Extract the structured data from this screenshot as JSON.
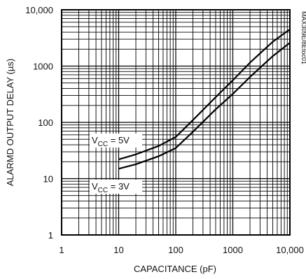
{
  "chart_data": {
    "type": "line",
    "x_scale": "log",
    "y_scale": "log",
    "xlim": [
      1,
      10000
    ],
    "ylim": [
      1,
      10000
    ],
    "grid": true,
    "xlabel": "CAPACITANCE (pF)",
    "ylabel": "ALARMD OUTPUT DELAY (µs)",
    "x_ticks": [
      1,
      10,
      100,
      1000,
      10000
    ],
    "x_tick_labels": [
      "1",
      "10",
      "100",
      "1000",
      "10,000"
    ],
    "y_ticks": [
      1,
      10,
      100,
      1000,
      10000
    ],
    "y_tick_labels": [
      "1",
      "10",
      "100",
      "1000",
      "10,000"
    ],
    "figure_id": "MAX309E/8Etoc01",
    "series": [
      {
        "name": "VCC = 5V",
        "label_main": "V",
        "label_sub": "CC",
        "label_rest": " = 5V",
        "x": [
          10,
          20,
          50,
          100,
          200,
          500,
          1000,
          2000,
          5000,
          10000
        ],
        "y": [
          22,
          27,
          38,
          55,
          110,
          280,
          560,
          1150,
          2700,
          4500
        ]
      },
      {
        "name": "VCC = 3V",
        "label_main": "V",
        "label_sub": "CC",
        "label_rest": " = 3V",
        "x": [
          10,
          20,
          50,
          100,
          200,
          500,
          1000,
          2000,
          5000,
          10000
        ],
        "y": [
          15,
          18,
          25,
          35,
          68,
          170,
          320,
          640,
          1500,
          2600
        ]
      }
    ]
  }
}
